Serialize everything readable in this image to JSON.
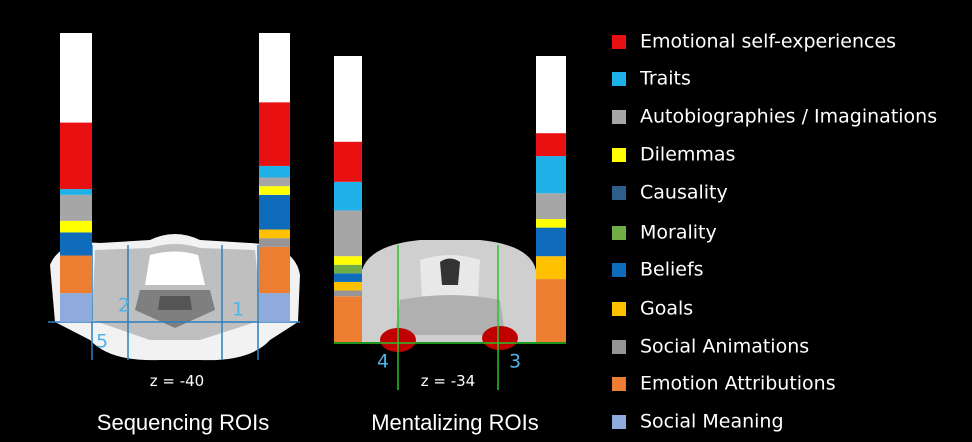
{
  "legend": [
    {
      "label": "Emotional self-experiences",
      "color": "#e81010"
    },
    {
      "label": "Traits",
      "color": "#1fb0e8"
    },
    {
      "label": "Autobiographies / Imaginations",
      "color": "#a6a6a6"
    },
    {
      "label": "Dilemmas",
      "color": "#ffff00"
    },
    {
      "label": "Causality",
      "color": "#2e5f8a"
    },
    {
      "label": "Morality",
      "color": "#70ad47"
    },
    {
      "label": "Beliefs",
      "color": "#0f6cbd"
    },
    {
      "label": "Goals",
      "color": "#ffc000"
    },
    {
      "label": "Social Animations",
      "color": "#959595"
    },
    {
      "label": "Emotion Attributions",
      "color": "#ed7d31"
    },
    {
      "label": "Social Meaning",
      "color": "#8faadc"
    }
  ],
  "panels": [
    {
      "caption": "Sequencing ROIs",
      "slice_label": "z = -40",
      "roi_labels": [
        "2",
        "1",
        "5"
      ],
      "bars": [
        {
          "values": [
            23,
            2,
            9,
            4,
            0,
            0,
            8,
            0,
            0,
            13,
            10
          ]
        },
        {
          "values": [
            22,
            4,
            3,
            3,
            0,
            0,
            12,
            3,
            3,
            16,
            10
          ]
        }
      ]
    },
    {
      "caption": "Mentalizing ROIs",
      "slice_label": "z = -34",
      "roi_labels": [
        "4",
        "3"
      ],
      "bars": [
        {
          "values": [
            14,
            10,
            16,
            3,
            0,
            3,
            3,
            3,
            2,
            16,
            0
          ]
        },
        {
          "values": [
            8,
            13,
            9,
            3,
            0,
            0,
            10,
            8,
            0,
            22,
            0
          ]
        }
      ]
    }
  ]
}
